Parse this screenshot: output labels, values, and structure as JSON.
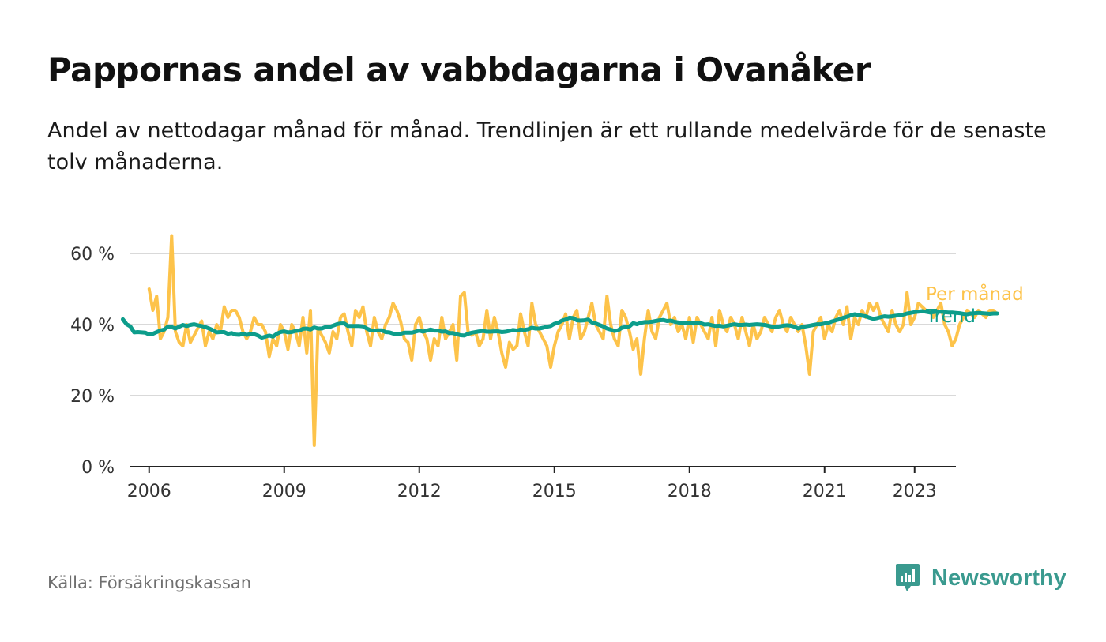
{
  "title": "Pappornas andel av vabbdagarna i Ovanåker",
  "subtitle": "Andel av nettodagar månad för månad. Trendlinjen är ett rullande medelvärde för de senaste tolv månaderna.",
  "source": "Källa: Försäkringskassan",
  "brand": {
    "name": "Newsworthy",
    "color": "#3a9a8f",
    "icon": "newsworthy-logo-icon"
  },
  "chart_data": {
    "type": "line",
    "title": "Pappornas andel av vabbdagarna i Ovanåker",
    "xlabel": "",
    "ylabel": "",
    "x_start": "2006-01",
    "x_step": "month",
    "xlim": [
      "2005-08",
      "2023-12"
    ],
    "ylim": [
      0,
      60
    ],
    "grid": true,
    "legend": "right-inline",
    "y_ticks": [
      {
        "value": 0,
        "label": "0 %"
      },
      {
        "value": 20,
        "label": "20 %"
      },
      {
        "value": 40,
        "label": "40 %"
      },
      {
        "value": 60,
        "label": "60 %"
      }
    ],
    "x_ticks": [
      {
        "value": 2006,
        "label": "2006"
      },
      {
        "value": 2009,
        "label": "2009"
      },
      {
        "value": 2012,
        "label": "2012"
      },
      {
        "value": 2015,
        "label": "2015"
      },
      {
        "value": 2018,
        "label": "2018"
      },
      {
        "value": 2021,
        "label": "2021"
      },
      {
        "value": 2023,
        "label": "2023"
      }
    ],
    "series": [
      {
        "name": "Per månad",
        "color": "#fdc34a",
        "values": [
          50,
          44,
          48,
          36,
          38,
          42,
          65,
          38,
          35,
          34,
          40,
          35,
          37,
          39,
          41,
          34,
          38,
          36,
          40,
          38,
          45,
          42,
          44,
          44,
          42,
          38,
          36,
          38,
          42,
          40,
          40,
          38,
          31,
          36,
          34,
          40,
          38,
          33,
          40,
          38,
          34,
          42,
          32,
          44,
          6,
          39,
          37,
          35,
          32,
          38,
          36,
          42,
          43,
          38,
          34,
          44,
          42,
          45,
          38,
          34,
          42,
          38,
          36,
          40,
          42,
          46,
          44,
          41,
          36,
          35,
          30,
          40,
          42,
          38,
          36,
          30,
          36,
          34,
          42,
          36,
          38,
          40,
          30,
          48,
          49,
          38,
          37,
          38,
          34,
          36,
          44,
          36,
          42,
          38,
          32,
          28,
          35,
          33,
          34,
          43,
          38,
          34,
          46,
          40,
          38,
          36,
          34,
          28,
          34,
          38,
          40,
          43,
          36,
          42,
          44,
          36,
          38,
          42,
          46,
          40,
          38,
          36,
          48,
          40,
          36,
          34,
          44,
          42,
          38,
          33,
          36,
          26,
          36,
          44,
          38,
          36,
          42,
          44,
          46,
          40,
          42,
          38,
          40,
          36,
          42,
          35,
          42,
          40,
          38,
          36,
          42,
          34,
          44,
          40,
          38,
          42,
          40,
          36,
          42,
          38,
          34,
          40,
          36,
          38,
          42,
          40,
          38,
          42,
          44,
          40,
          38,
          42,
          40,
          38,
          40,
          34,
          26,
          38,
          40,
          42,
          36,
          40,
          38,
          42,
          44,
          40,
          45,
          36,
          42,
          40,
          44,
          42,
          46,
          44,
          46,
          42,
          40,
          38,
          44,
          40,
          38,
          40,
          49,
          40,
          42,
          46,
          45,
          44,
          44,
          42,
          44,
          46,
          40,
          38,
          34,
          36,
          40,
          42,
          44,
          43,
          42,
          44,
          43,
          42,
          44,
          44,
          43
        ]
      },
      {
        "name": "Trend",
        "color": "#0d9d8b",
        "values": [
          41.5,
          40.1,
          39.5,
          37.8,
          37.9,
          37.8,
          37.7,
          37.2,
          37.4,
          37.9,
          38.3,
          38.6,
          39.4,
          39.3,
          38.9,
          39.4,
          39.9,
          39.6,
          39.9,
          40.1,
          39.8,
          39.6,
          39.3,
          38.9,
          38.4,
          37.8,
          37.9,
          37.9,
          37.4,
          37.6,
          37.2,
          37.1,
          37.4,
          37.1,
          37.3,
          37.3,
          36.9,
          36.3,
          36.6,
          36.9,
          36.6,
          37.4,
          37.9,
          38.1,
          37.8,
          37.9,
          38.2,
          38.3,
          38.8,
          38.9,
          38.6,
          39.2,
          38.9,
          38.9,
          39.3,
          39.3,
          39.7,
          40.1,
          40.3,
          40.3,
          39.6,
          39.6,
          39.6,
          39.6,
          39.5,
          38.9,
          38.4,
          38.3,
          38.4,
          38.4,
          37.9,
          37.8,
          37.5,
          37.3,
          37.4,
          37.7,
          37.7,
          37.7,
          38.0,
          38.3,
          38.0,
          38.3,
          38.6,
          38.3,
          38.3,
          38.0,
          38.1,
          37.6,
          37.6,
          37.3,
          37.0,
          36.9,
          37.4,
          37.7,
          37.9,
          38.1,
          38.2,
          38.0,
          38.0,
          38.1,
          38.1,
          37.9,
          38.0,
          38.2,
          38.5,
          38.3,
          38.6,
          38.5,
          38.7,
          39.1,
          38.9,
          38.9,
          39.1,
          39.4,
          39.6,
          40.2,
          40.5,
          41.1,
          41.4,
          41.9,
          41.8,
          41.2,
          41.1,
          41.2,
          41.4,
          40.6,
          40.3,
          39.9,
          39.5,
          38.9,
          38.6,
          38.2,
          38.4,
          39.1,
          39.3,
          39.5,
          40.4,
          40.1,
          40.5,
          40.7,
          40.7,
          40.8,
          41.0,
          41.2,
          41.3,
          41.0,
          41.1,
          40.8,
          40.6,
          40.3,
          40.4,
          40.5,
          40.3,
          40.5,
          40.4,
          40.0,
          40.1,
          39.8,
          39.6,
          39.7,
          39.5,
          39.7,
          39.9,
          40.1,
          39.9,
          39.9,
          40.0,
          39.9,
          40.0,
          40.1,
          40.0,
          39.9,
          39.7,
          39.4,
          39.3,
          39.5,
          39.7,
          39.8,
          39.7,
          39.4,
          38.9,
          39.3,
          39.5,
          39.7,
          39.9,
          40.1,
          40.1,
          40.3,
          40.5,
          40.9,
          41.2,
          41.5,
          41.9,
          42.2,
          42.6,
          42.9,
          42.7,
          42.5,
          42.3,
          41.9,
          41.6,
          41.8,
          42.1,
          42.3,
          42.2,
          42.3,
          42.5,
          42.6,
          42.8,
          43.1,
          43.3,
          43.5,
          43.6,
          43.8,
          43.6,
          43.4,
          43.5,
          43.7,
          43.6,
          43.5,
          43.4,
          43.4,
          43.3,
          43.2,
          43.0,
          42.9,
          43.1,
          43.2,
          43.3,
          43.2,
          43.1,
          43.0,
          43.1,
          43.1
        ]
      }
    ]
  }
}
